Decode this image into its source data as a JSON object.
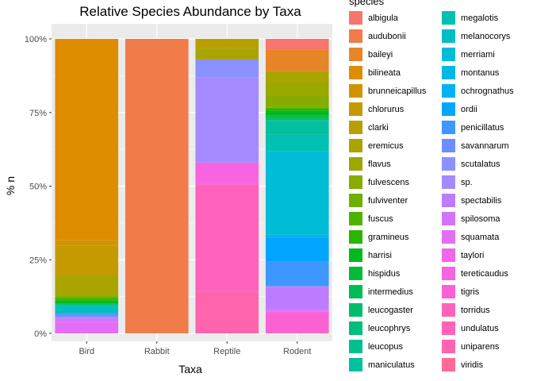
{
  "chart_data": {
    "type": "bar",
    "stacked": true,
    "title": "Relative Species Abundance by Taxa",
    "xlabel": "Taxa",
    "ylabel": "% n",
    "ylim": [
      0,
      1
    ],
    "yticks": [
      "0%",
      "25%",
      "50%",
      "75%",
      "100%"
    ],
    "grid": true,
    "legend_position": "right",
    "legend_title": "species",
    "categories": [
      "Bird",
      "Rabbit",
      "Reptile",
      "Rodent"
    ],
    "series": [
      {
        "name": "albigula",
        "color": "#F8766D",
        "values": [
          0,
          0,
          0,
          0.04
        ]
      },
      {
        "name": "audubonii",
        "color": "#F17C4A",
        "values": [
          0,
          1,
          0,
          0
        ]
      },
      {
        "name": "baileyi",
        "color": "#E88526",
        "values": [
          0,
          0,
          0,
          0.08
        ]
      },
      {
        "name": "bilineata",
        "color": "#DE8C00",
        "values": [
          0.68,
          0,
          0,
          0
        ]
      },
      {
        "name": "brunneicapillus",
        "color": "#D29300",
        "values": [
          0.02,
          0,
          0,
          0
        ]
      },
      {
        "name": "chlorurus",
        "color": "#C49A00",
        "values": [
          0.1,
          0,
          0,
          0
        ]
      },
      {
        "name": "clarki",
        "color": "#B79F00",
        "values": [
          0,
          0,
          0.03,
          0
        ]
      },
      {
        "name": "eremicus",
        "color": "#A9A400",
        "values": [
          0.07,
          0,
          0.04,
          0.04
        ]
      },
      {
        "name": "flavus",
        "color": "#9AA800",
        "values": [
          0,
          0,
          0,
          0.05
        ]
      },
      {
        "name": "fulvescens",
        "color": "#86AC00",
        "values": [
          0,
          0,
          0,
          0.04
        ]
      },
      {
        "name": "fulviventer",
        "color": "#6DB000",
        "values": [
          0.005,
          0,
          0,
          0.005
        ]
      },
      {
        "name": "fuscus",
        "color": "#4DB300",
        "values": [
          0.007,
          0,
          0,
          0.005
        ]
      },
      {
        "name": "gramineus",
        "color": "#2CB500",
        "values": [
          0.005,
          0,
          0,
          0.005
        ]
      },
      {
        "name": "harrisi",
        "color": "#00B81F",
        "values": [
          0.008,
          0,
          0,
          0.018
        ]
      },
      {
        "name": "hispidus",
        "color": "#00BA38",
        "values": [
          0,
          0,
          0,
          0.007
        ]
      },
      {
        "name": "intermedius",
        "color": "#00BC55",
        "values": [
          0,
          0,
          0,
          0.005
        ]
      },
      {
        "name": "leucogaster",
        "color": "#00BD6B",
        "values": [
          0,
          0,
          0,
          0.005
        ]
      },
      {
        "name": "leucophrys",
        "color": "#00BF7D",
        "values": [
          0.005,
          0,
          0,
          0
        ]
      },
      {
        "name": "leucopus",
        "color": "#00C08E",
        "values": [
          0.005,
          0,
          0,
          0.005
        ]
      },
      {
        "name": "maniculatus",
        "color": "#00C09F",
        "values": [
          0,
          0,
          0,
          0.05
        ]
      },
      {
        "name": "megalotis",
        "color": "#00C0B1",
        "values": [
          0,
          0,
          0,
          0.06
        ]
      },
      {
        "name": "melanocorys",
        "color": "#00BFC4",
        "values": [
          0.025,
          0,
          0,
          0
        ]
      },
      {
        "name": "merriami",
        "color": "#00BCD6",
        "values": [
          0,
          0,
          0,
          0.31
        ]
      },
      {
        "name": "montanus",
        "color": "#00B8E7",
        "values": [
          0,
          0,
          0,
          0.005
        ]
      },
      {
        "name": "ochrognathus",
        "color": "#00B2F3",
        "values": [
          0,
          0,
          0,
          0.005
        ]
      },
      {
        "name": "ordii",
        "color": "#00A5FF",
        "values": [
          0,
          0,
          0,
          0.09
        ]
      },
      {
        "name": "penicillatus",
        "color": "#3D97FF",
        "values": [
          0,
          0,
          0,
          0.09
        ]
      },
      {
        "name": "savannarum",
        "color": "#6D8DFF",
        "values": [
          0.01,
          0,
          0,
          0
        ]
      },
      {
        "name": "scutalatus",
        "color": "#8B92FF",
        "values": [
          0,
          0,
          0.06,
          0
        ]
      },
      {
        "name": "sp.",
        "color": "#A58AFF",
        "values": [
          0.006,
          0,
          0.29,
          0.005
        ]
      },
      {
        "name": "spectabilis",
        "color": "#BD7CFF",
        "values": [
          0,
          0,
          0,
          0.08
        ]
      },
      {
        "name": "spilosoma",
        "color": "#D274FC",
        "values": [
          0.01,
          0,
          0,
          0.005
        ]
      },
      {
        "name": "squamata",
        "color": "#E36EF6",
        "values": [
          0.04,
          0,
          0,
          0.005
        ]
      },
      {
        "name": "taylori",
        "color": "#EF67EB",
        "values": [
          0,
          0,
          0,
          0.005
        ]
      },
      {
        "name": "tereticaudus",
        "color": "#F763E0",
        "values": [
          0,
          0,
          0.07,
          0
        ]
      },
      {
        "name": "tigris",
        "color": "#FC61D4",
        "values": [
          0,
          0,
          0.005,
          0.07
        ]
      },
      {
        "name": "torridus",
        "color": "#FF62BC",
        "values": [
          0,
          0,
          0.36,
          0.005
        ]
      },
      {
        "name": "undulatus",
        "color": "#FF63B6",
        "values": [
          0,
          0,
          0.005,
          0
        ]
      },
      {
        "name": "uniparens",
        "color": "#FF65AC",
        "values": [
          0,
          0,
          0.14,
          0
        ]
      },
      {
        "name": "viridis",
        "color": "#FF6A98",
        "values": [
          0,
          0,
          0,
          0
        ]
      }
    ]
  }
}
